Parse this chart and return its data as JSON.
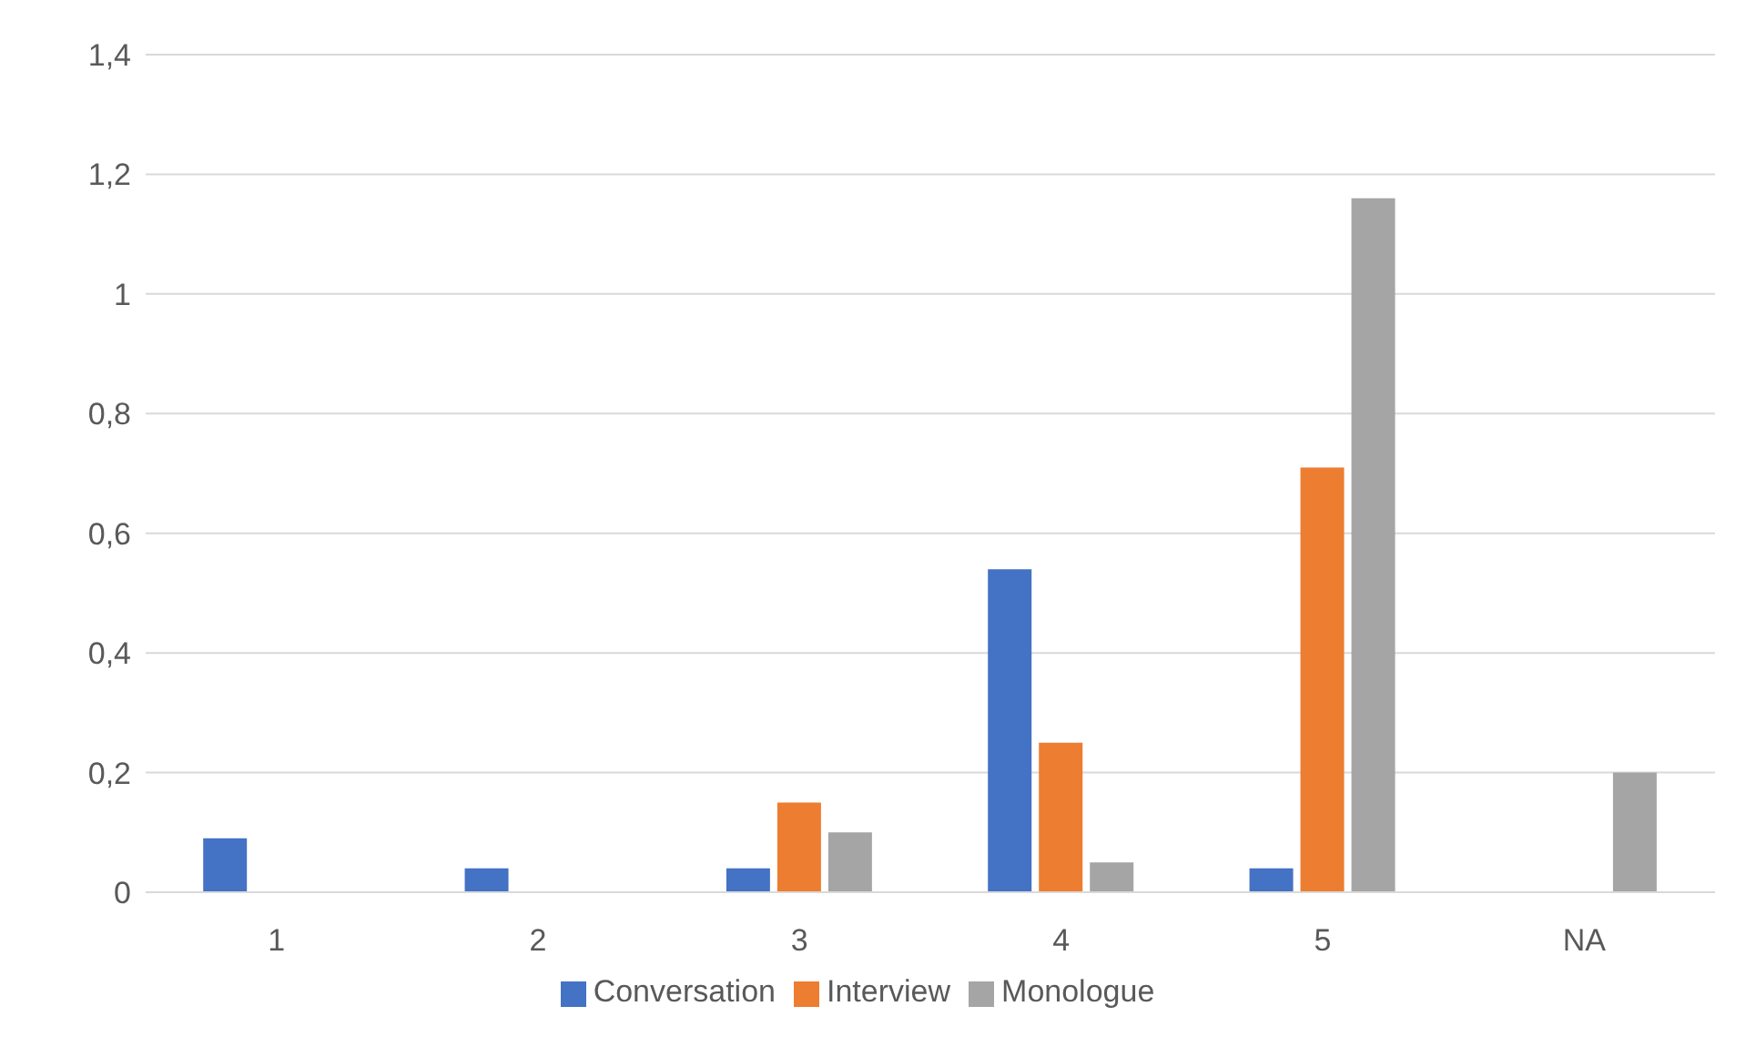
{
  "chart_data": {
    "type": "bar",
    "categories": [
      "1",
      "2",
      "3",
      "4",
      "5",
      "NA"
    ],
    "series": [
      {
        "name": "Conversation",
        "color": "#4472c4",
        "values": [
          0.09,
          0.04,
          0.04,
          0.54,
          0.04,
          null
        ]
      },
      {
        "name": "Interview",
        "color": "#ed7d31",
        "values": [
          null,
          null,
          0.15,
          0.25,
          0.71,
          null
        ]
      },
      {
        "name": "Monologue",
        "color": "#a5a5a5",
        "values": [
          null,
          null,
          0.1,
          0.05,
          1.16,
          0.2
        ]
      }
    ],
    "ylim": [
      0,
      1.4
    ],
    "yticks": [
      0,
      {
        "value": 0.2,
        "label": "0,2"
      },
      {
        "value": 0.4,
        "label": "0,4"
      },
      {
        "value": 0.6,
        "label": "0,6"
      },
      {
        "value": 0.8,
        "label": "0,8"
      },
      1,
      {
        "value": 1.2,
        "label": "1,2"
      },
      {
        "value": 1.4,
        "label": "1,4"
      }
    ],
    "grid": "y",
    "legend": "bottom"
  }
}
